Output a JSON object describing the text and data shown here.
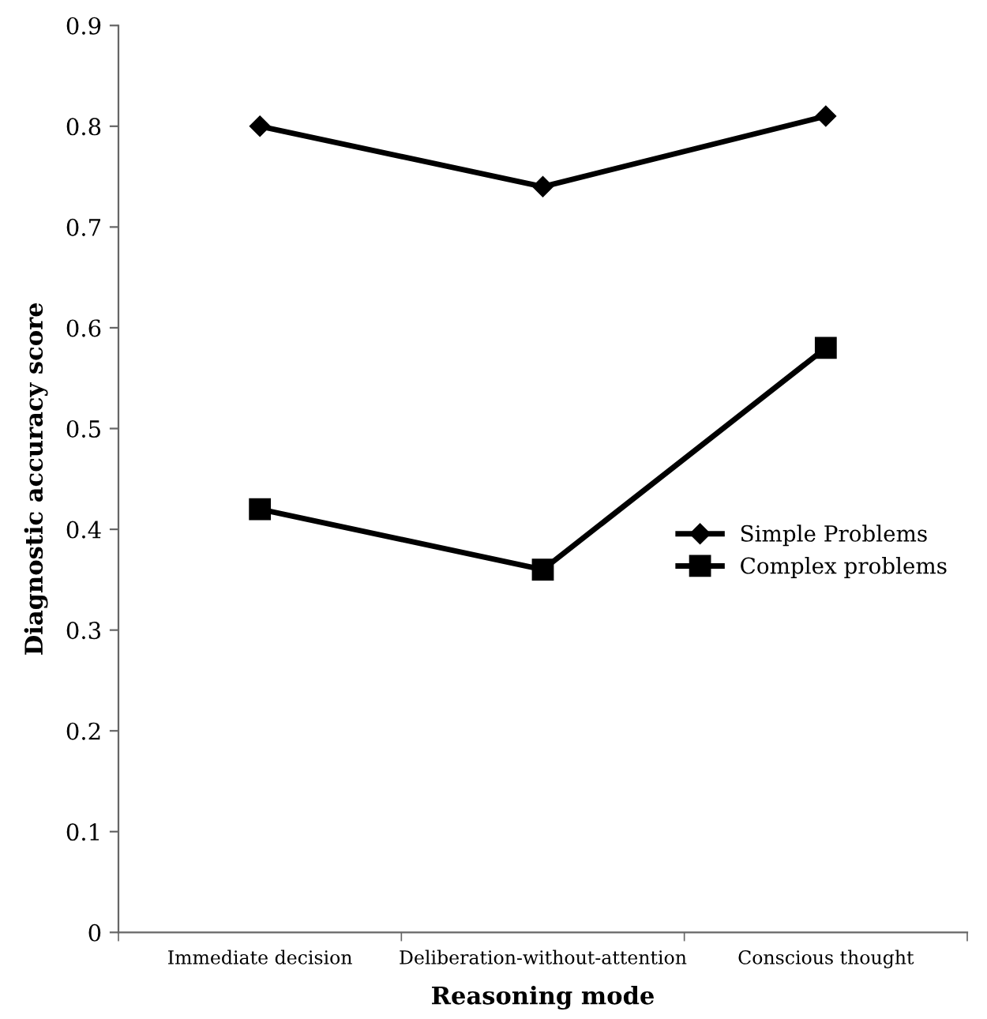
{
  "chart_data": {
    "type": "line",
    "xlabel": "Reasoning mode",
    "ylabel": "Diagnostic accuracy score",
    "categories": [
      "Immediate decision",
      "Deliberation-without-attention",
      "Conscious thought"
    ],
    "series": [
      {
        "name": "Simple Problems",
        "color": "#000000",
        "marker": "diamond",
        "values": [
          0.8,
          0.74,
          0.81
        ]
      },
      {
        "name": "Complex problems",
        "color": "#000000",
        "marker": "square",
        "values": [
          0.42,
          0.36,
          0.58
        ]
      }
    ],
    "ylim": [
      0,
      0.9
    ],
    "yticks": [
      0,
      0.1,
      0.2,
      0.3,
      0.4,
      0.5,
      0.6,
      0.7,
      0.8,
      0.9
    ],
    "grid": false,
    "legend": "right",
    "line_style": "solid"
  }
}
